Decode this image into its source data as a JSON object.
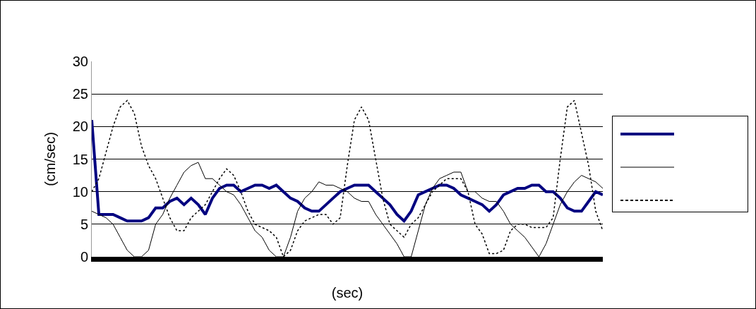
{
  "chart_data": {
    "type": "line",
    "xlabel": "(sec)",
    "ylabel": "(cm/sec)",
    "categories": [
      null,
      null,
      null,
      null,
      null,
      null,
      null,
      null,
      null,
      null,
      null,
      null,
      null,
      null,
      null,
      null,
      null,
      null,
      null,
      null,
      null,
      null,
      null,
      null,
      null,
      null,
      null,
      null,
      null,
      null,
      null,
      null,
      null,
      null,
      null,
      null,
      null,
      null,
      null,
      null,
      null,
      null,
      null,
      null,
      null,
      null,
      null,
      null,
      null,
      null,
      null,
      null,
      null,
      null,
      null,
      null,
      null,
      null,
      null,
      null,
      null,
      null,
      null,
      null,
      null,
      null,
      null,
      null,
      null,
      null,
      null,
      null,
      null
    ],
    "ylim": [
      0,
      30
    ],
    "yticks": [
      0,
      5,
      10,
      15,
      20,
      25,
      30
    ],
    "grid": "y",
    "tick_labels": "y",
    "series": [
      {
        "color": "#000080",
        "line_style": "solid",
        "values": [
          21,
          6.5,
          6.5,
          6.5,
          6,
          5.5,
          5.5,
          5.5,
          6,
          7.5,
          7.5,
          8.5,
          9,
          8,
          9,
          8,
          6.5,
          9,
          10.5,
          11,
          11,
          10,
          10.5,
          11,
          11,
          10.5,
          11,
          10,
          9,
          8.5,
          7.5,
          7,
          7,
          8,
          9,
          10,
          10.5,
          11,
          11,
          11,
          10,
          9,
          8,
          6.5,
          5.5,
          7,
          9.5,
          10,
          10.5,
          11,
          11,
          10.5,
          9.5,
          9,
          8.5,
          8,
          7,
          8,
          9.5,
          10,
          10.5,
          10.5,
          11,
          11,
          10,
          10,
          9,
          7.5,
          7,
          7,
          8.5,
          10,
          9.5
        ]
      },
      {
        "color": "#000000",
        "line_style": "solid",
        "values": [
          7,
          6.5,
          6,
          5,
          3,
          1,
          0,
          0,
          1,
          5,
          6.5,
          9,
          11,
          13,
          14,
          14.5,
          12,
          12,
          11,
          10,
          9.5,
          8,
          6,
          4,
          3,
          1,
          0,
          0,
          3,
          7,
          9,
          10,
          11.5,
          11,
          11,
          10.5,
          10,
          9,
          8.5,
          8.5,
          6.5,
          5,
          3.5,
          2,
          0,
          0,
          4,
          8,
          10.5,
          12,
          12.5,
          13,
          13,
          10,
          10,
          9,
          8.5,
          8.5,
          7,
          5,
          4,
          3,
          1.5,
          0,
          2,
          5,
          8,
          10,
          11.5,
          12.5,
          12,
          11.5,
          10.5
        ]
      },
      {
        "color": "#000000",
        "line_style": "dotted",
        "values": [
          10,
          12,
          16,
          20,
          23,
          24,
          22,
          17,
          14,
          12,
          9,
          6,
          4,
          4,
          6,
          7,
          8,
          10,
          12,
          13.5,
          12.5,
          10,
          7,
          5,
          4.5,
          4,
          3,
          0,
          1,
          4,
          5.5,
          6,
          6.5,
          6.5,
          5,
          6,
          14,
          21,
          23,
          21,
          15,
          9,
          5,
          4,
          3,
          5,
          6,
          8,
          10,
          11,
          12,
          12,
          12,
          10,
          5,
          3.5,
          0.5,
          0.5,
          1,
          4,
          5,
          5,
          4.5,
          4.5,
          4.5,
          6,
          15,
          23,
          24,
          19,
          14,
          7,
          4
        ]
      }
    ]
  }
}
